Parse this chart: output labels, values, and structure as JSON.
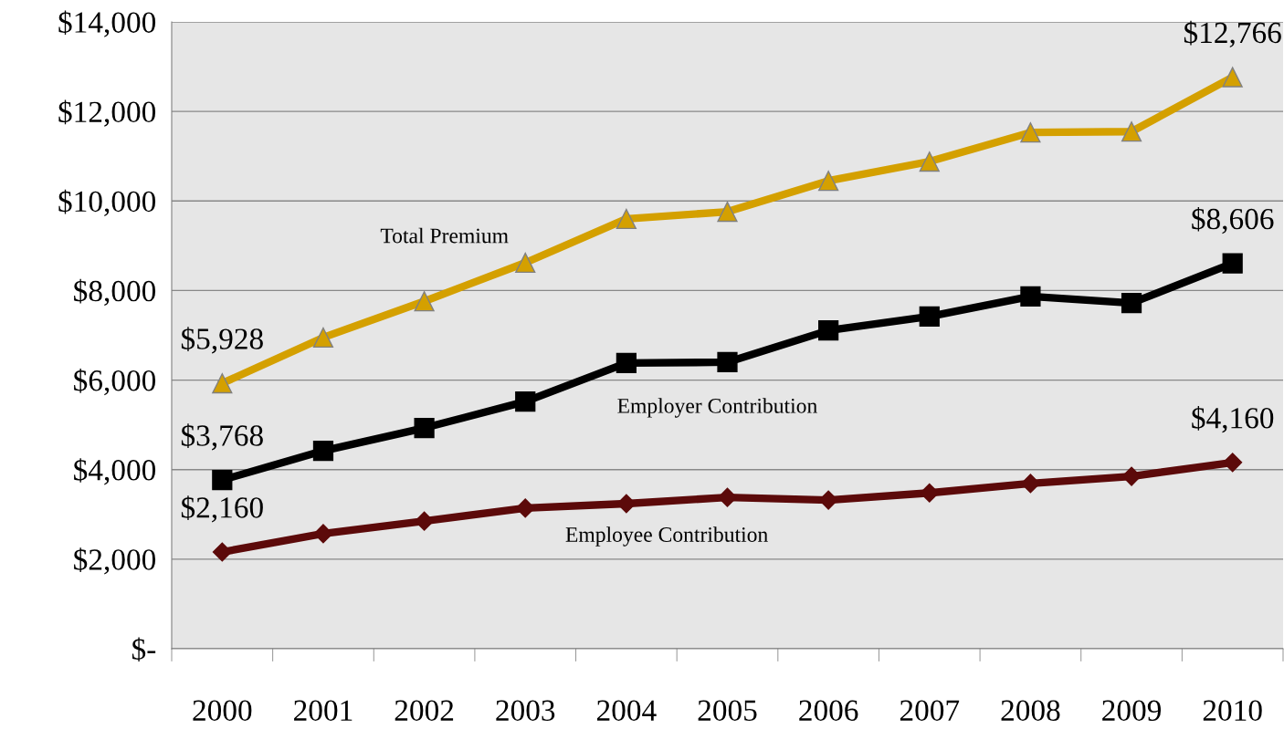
{
  "chart_data": {
    "type": "line",
    "categories": [
      "2000",
      "2001",
      "2002",
      "2003",
      "2004",
      "2005",
      "2006",
      "2007",
      "2008",
      "2009",
      "2010"
    ],
    "series": [
      {
        "name": "Total Premium",
        "color": "#d4a000",
        "marker": "triangle",
        "values": [
          5928,
          6950,
          7760,
          8620,
          9600,
          9760,
          10450,
          10880,
          11530,
          11550,
          12766
        ],
        "value_labels": [
          "$5,928",
          null,
          null,
          null,
          null,
          null,
          null,
          null,
          null,
          null,
          "$12,766"
        ]
      },
      {
        "name": "Employer Contribution",
        "color": "#000000",
        "marker": "square",
        "values": [
          3768,
          4420,
          4930,
          5520,
          6380,
          6400,
          7110,
          7420,
          7870,
          7720,
          8606
        ],
        "value_labels": [
          "$3,768",
          null,
          null,
          null,
          null,
          null,
          null,
          null,
          null,
          null,
          "$8,606"
        ]
      },
      {
        "name": "Employee Contribution",
        "color": "#5c0a0a",
        "marker": "diamond",
        "values": [
          2160,
          2570,
          2850,
          3140,
          3240,
          3380,
          3320,
          3480,
          3690,
          3850,
          4160
        ],
        "value_labels": [
          "$2,160",
          null,
          null,
          null,
          null,
          null,
          null,
          null,
          null,
          null,
          "$4,160"
        ]
      }
    ],
    "ylim": [
      0,
      14000
    ],
    "yticks": [
      {
        "value": 0,
        "label": "$-"
      },
      {
        "value": 2000,
        "label": "$2,000"
      },
      {
        "value": 4000,
        "label": "$4,000"
      },
      {
        "value": 6000,
        "label": "$6,000"
      },
      {
        "value": 8000,
        "label": "$8,000"
      },
      {
        "value": 10000,
        "label": "$10,000"
      },
      {
        "value": 12000,
        "label": "$12,000"
      },
      {
        "value": 14000,
        "label": "$14,000"
      }
    ],
    "grid": "y",
    "legend": false,
    "line_style": "solid"
  }
}
